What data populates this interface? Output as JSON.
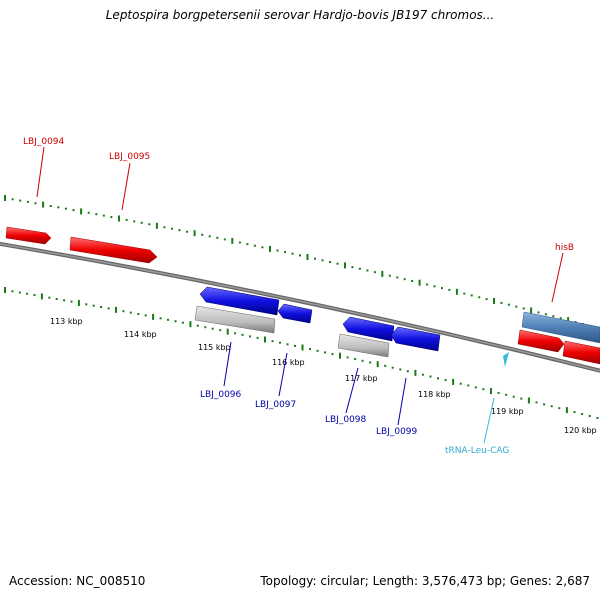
{
  "title": "Leptospira borgpetersenii serovar Hardjo-bovis JB197 chromos...",
  "footer": {
    "accession": "Accession: NC_008510",
    "summary": "Topology: circular; Length: 3,576,473 bp; Genes: 2,687"
  },
  "ticks": [
    "113 kbp",
    "114 kbp",
    "115 kbp",
    "116 kbp",
    "117 kbp",
    "118 kbp",
    "119 kbp",
    "120 kbp"
  ],
  "genes": [
    {
      "label": "LBJ_0094",
      "strand": "+",
      "color": "#e00000"
    },
    {
      "label": "LBJ_0095",
      "strand": "+",
      "color": "#e00000"
    },
    {
      "label": "LBJ_0096",
      "strand": "-",
      "color": "#0000cc"
    },
    {
      "label": "LBJ_0097",
      "strand": "-",
      "color": "#0000cc"
    },
    {
      "label": "LBJ_0098",
      "strand": "-",
      "color": "#0000cc"
    },
    {
      "label": "LBJ_0099",
      "strand": "-",
      "color": "#0000cc"
    },
    {
      "label": "hisB",
      "strand": "+",
      "color": "#e00000"
    },
    {
      "label": "tRNA-Leu-CAG",
      "strand": "-",
      "color": "#33bbdd"
    }
  ],
  "colors": {
    "forward_gene": "#e00000",
    "reverse_gene": "#0000cc",
    "trna": "#33bbdd",
    "cds_feature": "#5b8fc4",
    "backbone": "#7a7a7a",
    "tick": "#1a7a1a"
  }
}
